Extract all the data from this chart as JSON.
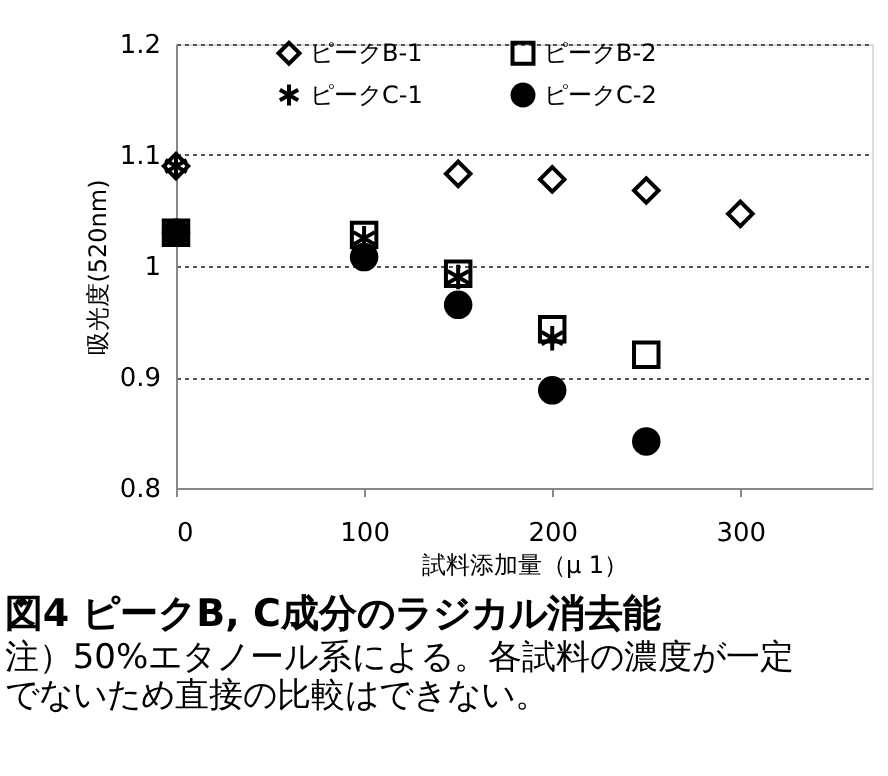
{
  "chart_data": {
    "type": "scatter",
    "title": "図4 ピークB, C成分のラジカル消去能",
    "annotations": [
      "注）50%エタノール系による。各試料の濃度が一定でないため直接の比較はできない。"
    ],
    "xlabel": "試料添加量（μ 1）",
    "ylabel": "吸光度(520nm)",
    "xlim": [
      0,
      370
    ],
    "xticks": [
      0,
      100,
      200,
      300
    ],
    "ylim": [
      0.8,
      1.2
    ],
    "yticks": [
      0.8,
      0.9,
      1,
      1.1,
      1.2
    ],
    "grid": "y",
    "legend": "top",
    "series": [
      {
        "name": "ピークB-1",
        "color": "#000000",
        "marker": "diamond",
        "x": [
          0,
          150,
          200,
          250,
          300
        ],
        "values": [
          1.09,
          1.083,
          1.078,
          1.068,
          1.047
        ]
      },
      {
        "name": "ピークB-2",
        "color": "#000000",
        "marker": "square",
        "x": [
          0,
          100,
          150,
          200,
          250
        ],
        "values": [
          1.03,
          1.028,
          0.993,
          0.943,
          0.92
        ]
      },
      {
        "name": "ピークC-1",
        "color": "#000000",
        "marker": "cross",
        "x": [
          0,
          100,
          150,
          200
        ],
        "values": [
          1.09,
          1.025,
          0.99,
          0.935
        ]
      },
      {
        "name": "ピークC-2",
        "color": "#000000",
        "marker": "circle",
        "x": [
          0,
          100,
          150,
          200,
          250
        ],
        "values": [
          1.03,
          1.008,
          0.965,
          0.888,
          0.842
        ]
      }
    ]
  }
}
